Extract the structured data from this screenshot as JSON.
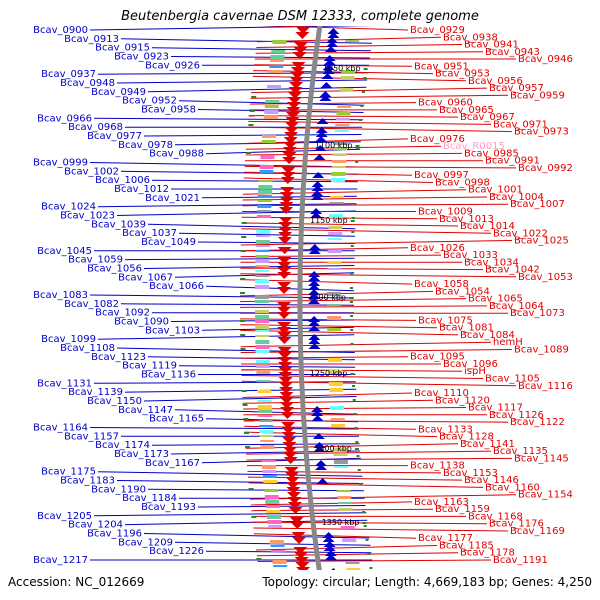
{
  "title": "Beutenbergia cavernae DSM 12333, complete genome",
  "footer": {
    "accession": "Accession: NC_012669",
    "summary": "Topology: circular; Length: 4,669,183 bp; Genes: 4,250"
  },
  "colors": {
    "forward_strand": "#e00000",
    "reverse_strand": "#0000c8",
    "highlight_label": "#ff9ec8",
    "backbone": "#888888"
  },
  "scale_markers": [
    "1050 kbp",
    "1100 kbp",
    "1150 kbp",
    "1200 kbp",
    "1250 kbp",
    "1300 kbp",
    "1350 kbp"
  ],
  "left_labels": [
    "Bcav_0900",
    "Bcav_0913",
    "Bcav_0915",
    "Bcav_0923",
    "Bcav_0926",
    "Bcav_0937",
    "Bcav_0948",
    "Bcav_0949",
    "Bcav_0952",
    "Bcav_0958",
    "Bcav_0966",
    "Bcav_0968",
    "Bcav_0977",
    "Bcav_0978",
    "Bcav_0988",
    "Bcav_0999",
    "Bcav_1002",
    "Bcav_1006",
    "Bcav_1012",
    "Bcav_1021",
    "Bcav_1024",
    "Bcav_1023",
    "Bcav_1039",
    "Bcav_1037",
    "Bcav_1049",
    "Bcav_1045",
    "Bcav_1059",
    "Bcav_1056",
    "Bcav_1067",
    "Bcav_1066",
    "Bcav_1083",
    "Bcav_1082",
    "Bcav_1092",
    "Bcav_1090",
    "Bcav_1103",
    "Bcav_1099",
    "Bcav_1108",
    "Bcav_1123",
    "Bcav_1119",
    "Bcav_1136",
    "Bcav_1131",
    "Bcav_1139",
    "Bcav_1150",
    "Bcav_1147",
    "Bcav_1165",
    "Bcav_1164",
    "Bcav_1157",
    "Bcav_1174",
    "Bcav_1173",
    "Bcav_1167",
    "Bcav_1175",
    "Bcav_1183",
    "Bcav_1190",
    "Bcav_1184",
    "Bcav_1193",
    "Bcav_1205",
    "Bcav_1204",
    "Bcav_1196",
    "Bcav_1209",
    "Bcav_1226",
    "Bcav_1217"
  ],
  "right_labels": [
    "Bcav_0929",
    "Bcav_0938",
    "Bcav_0941",
    "Bcav_0943",
    "Bcav_0946",
    "Bcav_0951",
    "Bcav_0953",
    "Bcav_0956",
    "Bcav_0957",
    "Bcav_0959",
    "Bcav_0960",
    "Bcav_0965",
    "Bcav_0967",
    "Bcav_0971",
    "Bcav_0973",
    "Bcav_0976",
    "Bcav_R0015",
    "Bcav_0985",
    "Bcav_0991",
    "Bcav_0992",
    "Bcav_0997",
    "Bcav_0998",
    "Bcav_1001",
    "Bcav_1004",
    "Bcav_1007",
    "Bcav_1009",
    "Bcav_1013",
    "Bcav_1014",
    "Bcav_1022",
    "Bcav_1025",
    "Bcav_1026",
    "Bcav_1033",
    "Bcav_1034",
    "Bcav_1042",
    "Bcav_1053",
    "Bcav_1058",
    "Bcav_1054",
    "Bcav_1065",
    "Bcav_1064",
    "Bcav_1073",
    "Bcav_1075",
    "Bcav_1081",
    "Bcav_1084",
    "hemH",
    "Bcav_1089",
    "Bcav_1095",
    "Bcav_1096",
    "ispH",
    "Bcav_1105",
    "Bcav_1116",
    "Bcav_1110",
    "Bcav_1120",
    "Bcav_1117",
    "Bcav_1126",
    "Bcav_1122",
    "Bcav_1133",
    "Bcav_1128",
    "Bcav_1141",
    "Bcav_1135",
    "Bcav_1145",
    "Bcav_1138",
    "Bcav_1153",
    "Bcav_1146",
    "Bcav_1160",
    "Bcav_1154",
    "Bcav_1163",
    "Bcav_1159",
    "Bcav_1168",
    "Bcav_1176",
    "Bcav_1169",
    "Bcav_1177",
    "Bcav_1185",
    "Bcav_1178",
    "Bcav_1191"
  ]
}
